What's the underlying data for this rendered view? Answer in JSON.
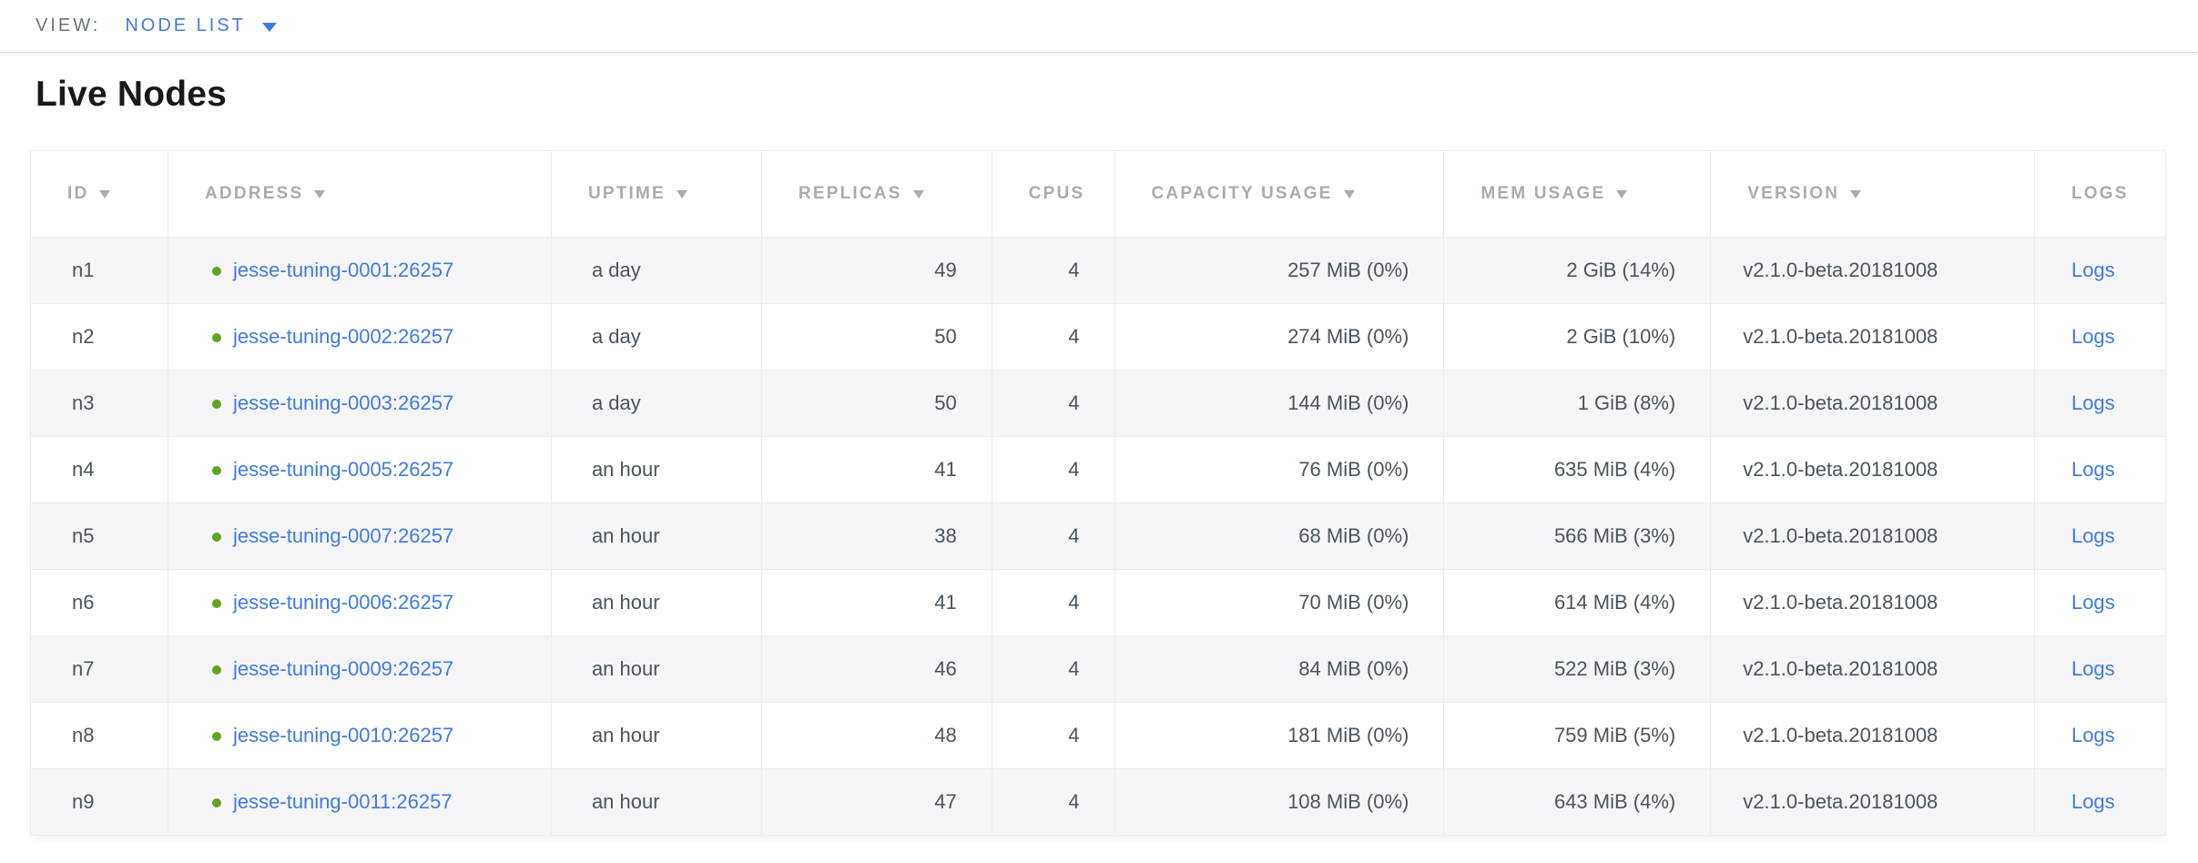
{
  "view_bar": {
    "label": "VIEW:",
    "selected_view": "NODE LIST"
  },
  "page": {
    "title": "Live Nodes"
  },
  "icons": {
    "dropdown_caret": "▼",
    "sort_descending": "▼",
    "healthy_status_dot": "●"
  },
  "colors": {
    "accent_blue": "#3e7be0",
    "healthy_green": "#62a420",
    "header_gray": "#a6acb2",
    "body_text": "#4a545c",
    "row_alt_bg": "#f6f6f8"
  },
  "table": {
    "columns": [
      {
        "key": "id",
        "label": "ID",
        "sortable": true,
        "align": "left"
      },
      {
        "key": "address",
        "label": "ADDRESS",
        "sortable": true,
        "align": "left"
      },
      {
        "key": "uptime",
        "label": "UPTIME",
        "sortable": true,
        "align": "left"
      },
      {
        "key": "replicas",
        "label": "REPLICAS",
        "sortable": true,
        "align": "right"
      },
      {
        "key": "cpus",
        "label": "CPUS",
        "sortable": false,
        "align": "right"
      },
      {
        "key": "capacity",
        "label": "CAPACITY USAGE",
        "sortable": true,
        "align": "right"
      },
      {
        "key": "mem",
        "label": "MEM USAGE",
        "sortable": true,
        "align": "right"
      },
      {
        "key": "version",
        "label": "VERSION",
        "sortable": true,
        "align": "left"
      },
      {
        "key": "logs",
        "label": "LOGS",
        "sortable": false,
        "align": "left"
      }
    ],
    "rows": [
      {
        "id": "n1",
        "address": "jesse-tuning-0001:26257",
        "status": "healthy",
        "uptime": "a day",
        "replicas": "49",
        "cpus": "4",
        "capacity": "257 MiB (0%)",
        "mem": "2 GiB (14%)",
        "version": "v2.1.0-beta.20181008",
        "logs": "Logs"
      },
      {
        "id": "n2",
        "address": "jesse-tuning-0002:26257",
        "status": "healthy",
        "uptime": "a day",
        "replicas": "50",
        "cpus": "4",
        "capacity": "274 MiB (0%)",
        "mem": "2 GiB (10%)",
        "version": "v2.1.0-beta.20181008",
        "logs": "Logs"
      },
      {
        "id": "n3",
        "address": "jesse-tuning-0003:26257",
        "status": "healthy",
        "uptime": "a day",
        "replicas": "50",
        "cpus": "4",
        "capacity": "144 MiB (0%)",
        "mem": "1 GiB (8%)",
        "version": "v2.1.0-beta.20181008",
        "logs": "Logs"
      },
      {
        "id": "n4",
        "address": "jesse-tuning-0005:26257",
        "status": "healthy",
        "uptime": "an hour",
        "replicas": "41",
        "cpus": "4",
        "capacity": "76 MiB (0%)",
        "mem": "635 MiB (4%)",
        "version": "v2.1.0-beta.20181008",
        "logs": "Logs"
      },
      {
        "id": "n5",
        "address": "jesse-tuning-0007:26257",
        "status": "healthy",
        "uptime": "an hour",
        "replicas": "38",
        "cpus": "4",
        "capacity": "68 MiB (0%)",
        "mem": "566 MiB (3%)",
        "version": "v2.1.0-beta.20181008",
        "logs": "Logs"
      },
      {
        "id": "n6",
        "address": "jesse-tuning-0006:26257",
        "status": "healthy",
        "uptime": "an hour",
        "replicas": "41",
        "cpus": "4",
        "capacity": "70 MiB (0%)",
        "mem": "614 MiB (4%)",
        "version": "v2.1.0-beta.20181008",
        "logs": "Logs"
      },
      {
        "id": "n7",
        "address": "jesse-tuning-0009:26257",
        "status": "healthy",
        "uptime": "an hour",
        "replicas": "46",
        "cpus": "4",
        "capacity": "84 MiB (0%)",
        "mem": "522 MiB (3%)",
        "version": "v2.1.0-beta.20181008",
        "logs": "Logs"
      },
      {
        "id": "n8",
        "address": "jesse-tuning-0010:26257",
        "status": "healthy",
        "uptime": "an hour",
        "replicas": "48",
        "cpus": "4",
        "capacity": "181 MiB (0%)",
        "mem": "759 MiB (5%)",
        "version": "v2.1.0-beta.20181008",
        "logs": "Logs"
      },
      {
        "id": "n9",
        "address": "jesse-tuning-0011:26257",
        "status": "healthy",
        "uptime": "an hour",
        "replicas": "47",
        "cpus": "4",
        "capacity": "108 MiB (0%)",
        "mem": "643 MiB (4%)",
        "version": "v2.1.0-beta.20181008",
        "logs": "Logs"
      }
    ]
  }
}
